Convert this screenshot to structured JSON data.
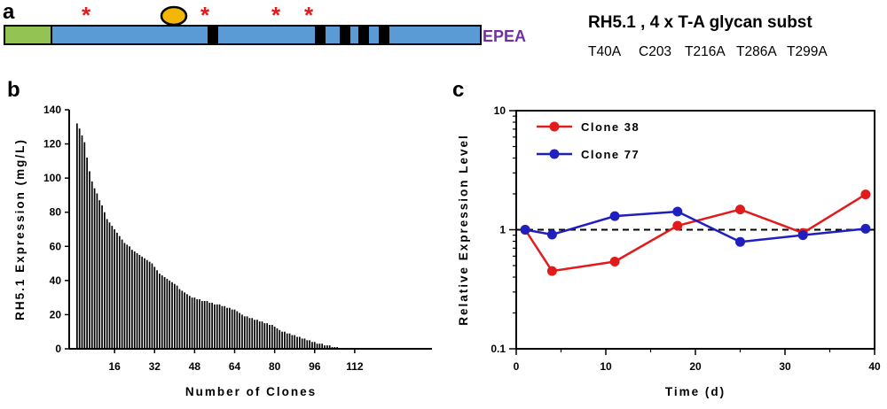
{
  "panels": {
    "a": "a",
    "b": "b",
    "c": "c"
  },
  "construct": {
    "title": "RH5.1 , 4 x T-A glycan subst",
    "tag": "EPEA",
    "substitutions": [
      "T40A",
      "C203",
      "T216A",
      "T286A",
      "T299A"
    ],
    "marker_symbol": "*",
    "colors": {
      "signal_peptide": "#92c353",
      "body": "#5b9bd5",
      "glycan_site": "#000000",
      "asterisk": "#e31a1c",
      "oval": "#f2b705",
      "tag": "#7030a0"
    }
  },
  "chart_data": [
    {
      "type": "bar",
      "panel": "b",
      "xlabel": "Number of Clones",
      "ylabel": "RH5.1 Expression (mg/L)",
      "ylim": [
        0,
        140
      ],
      "yticks": [
        0,
        20,
        40,
        60,
        80,
        100,
        120,
        140
      ],
      "xticks": [
        16,
        32,
        48,
        64,
        80,
        96,
        112
      ],
      "bar_color": "#000000",
      "values": [
        132,
        129,
        125,
        121,
        112,
        104,
        98,
        94,
        91,
        87,
        84,
        80,
        76,
        74,
        72,
        70,
        68,
        66,
        64,
        62,
        61,
        60,
        58,
        57,
        56,
        55,
        54,
        53,
        52,
        51,
        50,
        48,
        46,
        44,
        43,
        42,
        41,
        40,
        39,
        38,
        37,
        35,
        34,
        33,
        32,
        31,
        30,
        30,
        29,
        29,
        28,
        28,
        28,
        27,
        27,
        26,
        26,
        26,
        25,
        25,
        24,
        24,
        23,
        23,
        22,
        21,
        20,
        19,
        19,
        18,
        18,
        17,
        17,
        16,
        16,
        15,
        15,
        14,
        14,
        13,
        12,
        11,
        10,
        10,
        9,
        9,
        8,
        8,
        7,
        7,
        6,
        6,
        5,
        5,
        4,
        4,
        3,
        3,
        3,
        2,
        2,
        2,
        1,
        1,
        1
      ]
    },
    {
      "type": "line",
      "panel": "c",
      "xlabel": "Time (d)",
      "ylabel": "Relative Expression Level",
      "yscale": "log",
      "xlim": [
        0,
        40
      ],
      "ylim": [
        0.1,
        10
      ],
      "xticks": [
        0,
        10,
        20,
        30,
        40
      ],
      "yticks": [
        0.1,
        1,
        10
      ],
      "ytick_labels": [
        "0.1",
        "1",
        "10"
      ],
      "reference_line": 1,
      "legend_position": "top-left",
      "series": [
        {
          "name": "Clone 38",
          "color": "#e31a1c",
          "x": [
            1,
            4,
            11,
            18,
            25,
            32,
            39
          ],
          "y": [
            1.0,
            0.45,
            0.54,
            1.08,
            1.48,
            0.94,
            1.98
          ]
        },
        {
          "name": "Clone 77",
          "color": "#1f1fbf",
          "x": [
            1,
            4,
            11,
            18,
            25,
            32,
            39
          ],
          "y": [
            1.0,
            0.91,
            1.3,
            1.42,
            0.79,
            0.9,
            1.02
          ]
        }
      ]
    }
  ]
}
